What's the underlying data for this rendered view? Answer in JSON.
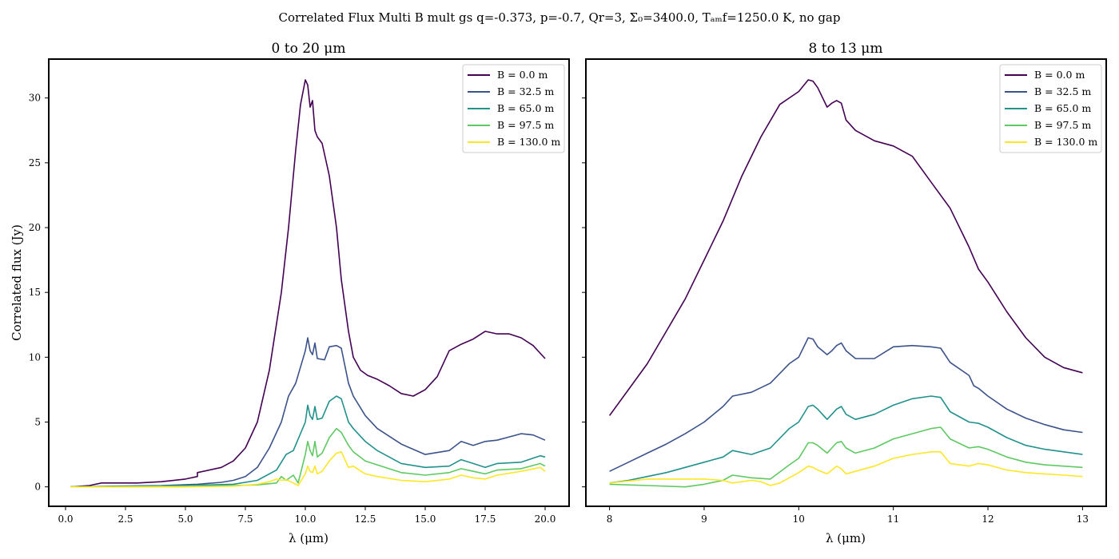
{
  "suptitle": "Correlated Flux Multi B mult gs q=-0.373, p=-0.7, Qr=3, Σ₀=3400.0, Tₐₘf=1250.0 K, no gap",
  "colors": {
    "B0": "#440154",
    "B32": "#3b528b",
    "B65": "#21918c",
    "B97": "#5ec962",
    "B130": "#fde725"
  },
  "chart_data": [
    {
      "type": "line",
      "title": "0 to 20 μm",
      "xlabel": "λ (μm)",
      "ylabel": "Correlated flux (Jy)",
      "xlim": [
        -0.7,
        21.0
      ],
      "ylim": [
        -1.5,
        33.0
      ],
      "xticks": [
        0.0,
        2.5,
        5.0,
        7.5,
        10.0,
        12.5,
        15.0,
        17.5,
        20.0
      ],
      "xtick_labels": [
        "0.0",
        "2.5",
        "5.0",
        "7.5",
        "10.0",
        "12.5",
        "15.0",
        "17.5",
        "20.0"
      ],
      "yticks": [
        0,
        5,
        10,
        15,
        20,
        25,
        30
      ],
      "ytick_labels": [
        "0",
        "5",
        "10",
        "15",
        "20",
        "25",
        "30"
      ],
      "legend": "top-right",
      "grid": false,
      "series": [
        {
          "name": "B = 0.0 m",
          "color": "#440154",
          "x": [
            0.2,
            1.0,
            1.5,
            2.0,
            3.0,
            4.0,
            5.0,
            5.5,
            5.5,
            6.5,
            7.0,
            7.5,
            8.0,
            8.5,
            9.0,
            9.3,
            9.6,
            9.8,
            10.0,
            10.1,
            10.2,
            10.3,
            10.4,
            10.5,
            10.7,
            11.0,
            11.3,
            11.5,
            11.8,
            12.0,
            12.3,
            12.6,
            13.0,
            13.5,
            14.0,
            14.5,
            15.0,
            15.5,
            16.0,
            16.5,
            17.0,
            17.5,
            18.0,
            18.5,
            19.0,
            19.5,
            20.0
          ],
          "y": [
            0.0,
            0.1,
            0.3,
            0.3,
            0.3,
            0.4,
            0.6,
            0.8,
            1.1,
            1.5,
            2.0,
            3.0,
            5.0,
            9.0,
            15.0,
            20.0,
            26.0,
            29.5,
            31.4,
            31.0,
            29.3,
            29.8,
            27.5,
            27.0,
            26.5,
            24.0,
            20.0,
            16.0,
            12.0,
            10.0,
            9.0,
            8.6,
            8.3,
            7.8,
            7.2,
            7.0,
            7.5,
            8.5,
            10.5,
            11.0,
            11.4,
            12.0,
            11.8,
            11.8,
            11.5,
            10.9,
            9.9
          ]
        },
        {
          "name": "B = 32.5 m",
          "color": "#3b528b",
          "x": [
            0.2,
            2.0,
            4.0,
            5.5,
            6.5,
            7.0,
            7.5,
            8.0,
            8.5,
            9.0,
            9.3,
            9.6,
            10.0,
            10.1,
            10.2,
            10.3,
            10.4,
            10.5,
            10.8,
            11.0,
            11.3,
            11.5,
            11.8,
            12.0,
            12.5,
            13.0,
            14.0,
            15.0,
            16.0,
            16.5,
            17.0,
            17.5,
            18.0,
            19.0,
            19.5,
            20.0
          ],
          "y": [
            0.0,
            0.05,
            0.1,
            0.2,
            0.35,
            0.5,
            0.8,
            1.5,
            3.0,
            5.0,
            7.0,
            8.0,
            10.5,
            11.5,
            10.5,
            10.2,
            11.1,
            9.9,
            9.8,
            10.8,
            10.9,
            10.7,
            8.0,
            7.0,
            5.5,
            4.5,
            3.3,
            2.5,
            2.8,
            3.5,
            3.2,
            3.5,
            3.6,
            4.1,
            4.0,
            3.6
          ]
        },
        {
          "name": "B = 65.0 m",
          "color": "#21918c",
          "x": [
            0.2,
            5.0,
            7.0,
            8.0,
            8.8,
            9.2,
            9.5,
            10.0,
            10.1,
            10.2,
            10.3,
            10.4,
            10.5,
            10.7,
            11.0,
            11.3,
            11.5,
            11.8,
            12.0,
            12.5,
            13.0,
            14.0,
            15.0,
            16.0,
            16.5,
            17.0,
            17.5,
            18.0,
            19.0,
            19.8,
            20.0
          ],
          "y": [
            0.0,
            0.1,
            0.2,
            0.5,
            1.3,
            2.5,
            2.8,
            5.0,
            6.3,
            5.5,
            5.2,
            6.2,
            5.2,
            5.3,
            6.6,
            7.0,
            6.8,
            5.0,
            4.5,
            3.5,
            2.8,
            1.8,
            1.5,
            1.6,
            2.1,
            1.8,
            1.5,
            1.8,
            1.9,
            2.4,
            2.3
          ]
        },
        {
          "name": "B = 97.5 m",
          "color": "#5ec962",
          "x": [
            0.2,
            5.0,
            7.0,
            8.0,
            8.8,
            9.0,
            9.2,
            9.5,
            9.7,
            10.0,
            10.1,
            10.2,
            10.3,
            10.4,
            10.5,
            10.7,
            11.0,
            11.3,
            11.5,
            11.8,
            12.0,
            12.5,
            13.0,
            14.0,
            15.0,
            16.0,
            16.5,
            17.0,
            17.5,
            18.0,
            19.0,
            19.8,
            20.0
          ],
          "y": [
            0.0,
            0.05,
            0.1,
            0.15,
            0.3,
            0.8,
            0.5,
            0.9,
            0.3,
            2.5,
            3.5,
            2.8,
            2.4,
            3.5,
            2.3,
            2.6,
            3.8,
            4.5,
            4.2,
            3.2,
            2.7,
            2.0,
            1.7,
            1.1,
            0.9,
            1.1,
            1.4,
            1.2,
            1.0,
            1.3,
            1.4,
            1.8,
            1.6
          ]
        },
        {
          "name": "B = 130.0 m",
          "color": "#fde725",
          "x": [
            0.2,
            5.0,
            7.0,
            8.0,
            8.5,
            8.8,
            9.0,
            9.2,
            9.5,
            9.7,
            10.0,
            10.1,
            10.2,
            10.3,
            10.4,
            10.5,
            10.7,
            11.0,
            11.3,
            11.5,
            11.8,
            12.0,
            12.5,
            13.0,
            14.0,
            15.0,
            16.0,
            16.5,
            17.0,
            17.5,
            18.0,
            19.0,
            19.8,
            20.0
          ],
          "y": [
            0.0,
            0.0,
            0.05,
            0.2,
            0.4,
            0.6,
            0.5,
            0.55,
            0.3,
            0.1,
            1.0,
            1.6,
            1.2,
            1.1,
            1.6,
            1.0,
            1.2,
            2.0,
            2.6,
            2.7,
            1.5,
            1.6,
            1.0,
            0.8,
            0.5,
            0.4,
            0.6,
            0.9,
            0.7,
            0.6,
            0.9,
            1.2,
            1.5,
            1.2
          ]
        }
      ]
    },
    {
      "type": "line",
      "title": "8 to 13 μm",
      "xlabel": "λ (μm)",
      "ylabel": "",
      "xlim": [
        7.75,
        13.25
      ],
      "ylim": [
        -1.5,
        33.0
      ],
      "xticks": [
        8,
        9,
        10,
        11,
        12,
        13
      ],
      "xtick_labels": [
        "8",
        "9",
        "10",
        "11",
        "12",
        "13"
      ],
      "yticks": [
        0,
        5,
        10,
        15,
        20,
        25,
        30
      ],
      "ytick_labels": [],
      "legend": "top-right",
      "grid": false,
      "series": [
        {
          "name": "B = 0.0 m",
          "color": "#440154",
          "x": [
            8.0,
            8.2,
            8.4,
            8.6,
            8.8,
            9.0,
            9.2,
            9.4,
            9.6,
            9.8,
            10.0,
            10.1,
            10.15,
            10.2,
            10.3,
            10.35,
            10.4,
            10.45,
            10.5,
            10.6,
            10.8,
            11.0,
            11.2,
            11.4,
            11.6,
            11.8,
            11.9,
            12.0,
            12.2,
            12.4,
            12.6,
            12.8,
            13.0
          ],
          "y": [
            5.5,
            7.5,
            9.5,
            12.0,
            14.5,
            17.5,
            20.5,
            24.0,
            27.0,
            29.5,
            30.5,
            31.4,
            31.3,
            30.8,
            29.3,
            29.6,
            29.8,
            29.6,
            28.3,
            27.5,
            26.7,
            26.3,
            25.5,
            23.5,
            21.5,
            18.5,
            16.8,
            15.8,
            13.5,
            11.5,
            10.0,
            9.2,
            8.8
          ]
        },
        {
          "name": "B = 32.5 m",
          "color": "#3b528b",
          "x": [
            8.0,
            8.2,
            8.4,
            8.6,
            8.8,
            9.0,
            9.2,
            9.3,
            9.5,
            9.7,
            9.9,
            10.0,
            10.1,
            10.15,
            10.2,
            10.3,
            10.35,
            10.4,
            10.45,
            10.5,
            10.6,
            10.8,
            11.0,
            11.2,
            11.4,
            11.5,
            11.6,
            11.8,
            11.85,
            11.9,
            12.0,
            12.2,
            12.4,
            12.6,
            12.8,
            13.0
          ],
          "y": [
            1.2,
            1.9,
            2.6,
            3.3,
            4.1,
            5.0,
            6.2,
            7.0,
            7.3,
            8.0,
            9.5,
            10.0,
            11.5,
            11.4,
            10.8,
            10.2,
            10.5,
            10.9,
            11.1,
            10.5,
            9.9,
            9.9,
            10.8,
            10.9,
            10.8,
            10.7,
            9.6,
            8.6,
            7.8,
            7.6,
            7.0,
            6.0,
            5.3,
            4.8,
            4.4,
            4.2
          ]
        },
        {
          "name": "B = 65.0 m",
          "color": "#21918c",
          "x": [
            8.0,
            8.2,
            8.4,
            8.6,
            8.8,
            9.0,
            9.2,
            9.3,
            9.5,
            9.7,
            9.9,
            10.0,
            10.1,
            10.15,
            10.2,
            10.3,
            10.35,
            10.4,
            10.45,
            10.5,
            10.6,
            10.8,
            11.0,
            11.2,
            11.4,
            11.5,
            11.6,
            11.8,
            11.9,
            12.0,
            12.2,
            12.4,
            12.6,
            12.8,
            13.0
          ],
          "y": [
            0.3,
            0.5,
            0.8,
            1.1,
            1.5,
            1.9,
            2.3,
            2.8,
            2.5,
            3.0,
            4.5,
            5.0,
            6.2,
            6.3,
            6.0,
            5.2,
            5.6,
            6.0,
            6.2,
            5.6,
            5.2,
            5.6,
            6.3,
            6.8,
            7.0,
            6.9,
            5.8,
            5.0,
            4.9,
            4.6,
            3.8,
            3.2,
            2.9,
            2.7,
            2.5
          ]
        },
        {
          "name": "B = 97.5 m",
          "color": "#5ec962",
          "x": [
            8.0,
            8.4,
            8.8,
            9.0,
            9.2,
            9.3,
            9.5,
            9.7,
            9.9,
            10.0,
            10.1,
            10.15,
            10.2,
            10.3,
            10.35,
            10.4,
            10.45,
            10.5,
            10.6,
            10.8,
            11.0,
            11.2,
            11.4,
            11.5,
            11.6,
            11.8,
            11.9,
            12.0,
            12.2,
            12.4,
            12.6,
            12.8,
            13.0
          ],
          "y": [
            0.2,
            0.1,
            0.0,
            0.2,
            0.5,
            0.9,
            0.7,
            0.6,
            1.7,
            2.2,
            3.4,
            3.4,
            3.2,
            2.6,
            3.0,
            3.4,
            3.5,
            3.0,
            2.6,
            3.0,
            3.7,
            4.1,
            4.5,
            4.6,
            3.7,
            3.0,
            3.1,
            2.9,
            2.3,
            1.9,
            1.7,
            1.6,
            1.5
          ]
        },
        {
          "name": "B = 130.0 m",
          "color": "#fde725",
          "x": [
            8.0,
            8.4,
            8.8,
            9.0,
            9.2,
            9.3,
            9.4,
            9.5,
            9.6,
            9.7,
            9.8,
            9.9,
            10.0,
            10.1,
            10.15,
            10.2,
            10.3,
            10.35,
            10.4,
            10.45,
            10.5,
            10.6,
            10.8,
            11.0,
            11.2,
            11.4,
            11.5,
            11.6,
            11.8,
            11.9,
            12.0,
            12.2,
            12.4,
            12.6,
            12.8,
            13.0
          ],
          "y": [
            0.3,
            0.6,
            0.6,
            0.6,
            0.5,
            0.3,
            0.4,
            0.5,
            0.4,
            0.1,
            0.3,
            0.7,
            1.1,
            1.6,
            1.5,
            1.3,
            1.0,
            1.3,
            1.6,
            1.4,
            1.0,
            1.2,
            1.6,
            2.2,
            2.5,
            2.7,
            2.7,
            1.8,
            1.6,
            1.8,
            1.7,
            1.3,
            1.1,
            1.0,
            0.9,
            0.8
          ]
        }
      ]
    }
  ]
}
